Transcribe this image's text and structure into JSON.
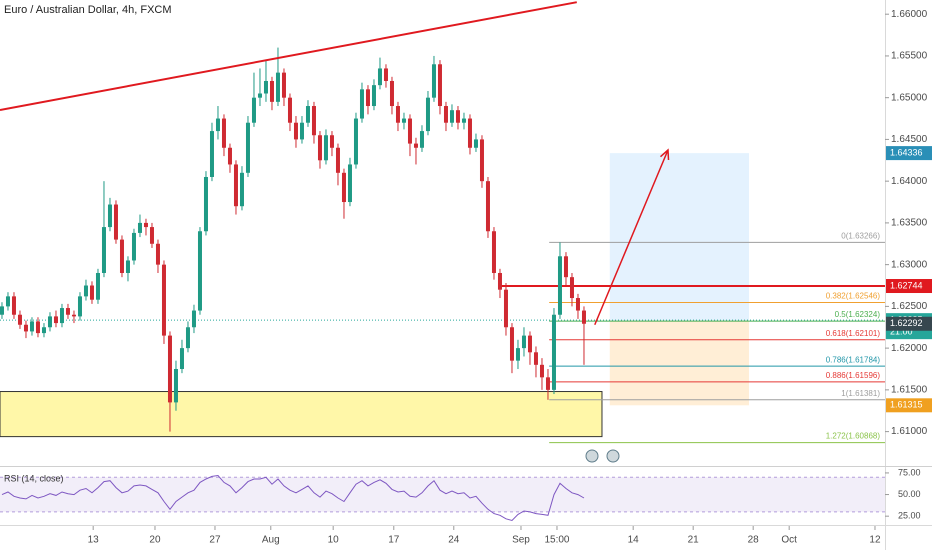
{
  "chart_data": {
    "type": "candlestick",
    "title": "Euro / Australian Dollar, 4h, FXCM",
    "up_color": "#1f9a85",
    "down_color": "#cf2a32",
    "open": [
      1.624,
      1.625,
      1.6262,
      1.624,
      1.6228,
      1.622,
      1.6232,
      1.6218,
      1.6225,
      1.6238,
      1.623,
      1.6248,
      1.624,
      1.6238,
      1.6262,
      1.6275,
      1.6258,
      1.629,
      1.6345,
      1.6372,
      1.633,
      1.629,
      1.6305,
      1.6338,
      1.635,
      1.6345,
      1.6325,
      1.63,
      1.6215,
      1.6135,
      1.6175,
      1.62,
      1.6225,
      1.6245,
      1.634,
      1.6405,
      1.646,
      1.6475,
      1.644,
      1.642,
      1.637,
      1.641,
      1.647,
      1.65,
      1.6505,
      1.652,
      1.6495,
      1.653,
      1.65,
      1.647,
      1.645,
      1.647,
      1.649,
      1.6455,
      1.6425,
      1.6455,
      1.644,
      1.641,
      1.6375,
      1.642,
      1.6475,
      1.651,
      1.649,
      1.6515,
      1.6535,
      1.652,
      1.649,
      1.647,
      1.6475,
      1.6445,
      1.644,
      1.646,
      1.65,
      1.654,
      1.649,
      1.647,
      1.6485,
      1.647,
      1.6475,
      1.644,
      1.645,
      1.64,
      1.634,
      1.629,
      1.627,
      1.6225,
      1.6185,
      1.62,
      1.6215,
      1.6195,
      1.618,
      1.6165,
      1.615,
      1.624,
      1.631,
      1.6285,
      1.626,
      1.6245
    ],
    "high": [
      1.6255,
      1.6267,
      1.6267,
      1.6245,
      1.6233,
      1.6237,
      1.6237,
      1.623,
      1.6243,
      1.6245,
      1.6253,
      1.6253,
      1.6245,
      1.6267,
      1.6282,
      1.628,
      1.6295,
      1.64,
      1.638,
      1.6377,
      1.6335,
      1.631,
      1.6343,
      1.636,
      1.6355,
      1.635,
      1.633,
      1.6305,
      1.622,
      1.6185,
      1.621,
      1.6232,
      1.6252,
      1.6345,
      1.6412,
      1.647,
      1.649,
      1.648,
      1.6445,
      1.6425,
      1.6418,
      1.6478,
      1.653,
      1.6535,
      1.6545,
      1.6525,
      1.656,
      1.6535,
      1.6505,
      1.6478,
      1.6478,
      1.6497,
      1.6495,
      1.646,
      1.6462,
      1.646,
      1.6445,
      1.6415,
      1.6428,
      1.6482,
      1.6518,
      1.6515,
      1.6522,
      1.6548,
      1.654,
      1.6525,
      1.6495,
      1.6482,
      1.648,
      1.6452,
      1.6467,
      1.6508,
      1.655,
      1.6545,
      1.6495,
      1.6492,
      1.649,
      1.6482,
      1.648,
      1.6457,
      1.6455,
      1.6405,
      1.6345,
      1.6295,
      1.6278,
      1.623,
      1.621,
      1.6225,
      1.622,
      1.6202,
      1.6188,
      1.6175,
      1.6248,
      1.63266,
      1.6315,
      1.629,
      1.6265,
      1.625
    ],
    "low": [
      1.6235,
      1.6245,
      1.6235,
      1.6223,
      1.6212,
      1.6215,
      1.6213,
      1.6213,
      1.622,
      1.6225,
      1.6225,
      1.6235,
      1.623,
      1.6233,
      1.6257,
      1.6253,
      1.6253,
      1.6285,
      1.634,
      1.6325,
      1.6285,
      1.628,
      1.63,
      1.6333,
      1.6335,
      1.632,
      1.629,
      1.6205,
      1.61,
      1.6125,
      1.617,
      1.6195,
      1.6218,
      1.624,
      1.6335,
      1.64,
      1.645,
      1.643,
      1.641,
      1.636,
      1.6365,
      1.6405,
      1.6465,
      1.649,
      1.6495,
      1.6485,
      1.649,
      1.649,
      1.646,
      1.644,
      1.6445,
      1.6465,
      1.6445,
      1.6415,
      1.642,
      1.643,
      1.6395,
      1.6355,
      1.637,
      1.6415,
      1.647,
      1.648,
      1.6485,
      1.651,
      1.6512,
      1.648,
      1.646,
      1.6462,
      1.643,
      1.642,
      1.6435,
      1.6455,
      1.6495,
      1.648,
      1.646,
      1.6465,
      1.6462,
      1.6462,
      1.6432,
      1.6435,
      1.6392,
      1.6332,
      1.6282,
      1.626,
      1.6215,
      1.617,
      1.6175,
      1.619,
      1.618,
      1.6165,
      1.615,
      1.61381,
      1.6145,
      1.6235,
      1.6275,
      1.625,
      1.6235,
      1.618
    ],
    "close": [
      1.625,
      1.6262,
      1.624,
      1.6228,
      1.622,
      1.6232,
      1.6218,
      1.6225,
      1.6238,
      1.623,
      1.6248,
      1.624,
      1.6238,
      1.6262,
      1.6275,
      1.6258,
      1.629,
      1.6345,
      1.6372,
      1.633,
      1.629,
      1.6305,
      1.6338,
      1.635,
      1.6345,
      1.6325,
      1.63,
      1.6215,
      1.6135,
      1.6175,
      1.62,
      1.6225,
      1.6245,
      1.634,
      1.6405,
      1.646,
      1.6475,
      1.644,
      1.642,
      1.637,
      1.641,
      1.647,
      1.65,
      1.6505,
      1.652,
      1.6495,
      1.653,
      1.65,
      1.647,
      1.645,
      1.647,
      1.649,
      1.6455,
      1.6425,
      1.6455,
      1.644,
      1.641,
      1.6375,
      1.642,
      1.6475,
      1.651,
      1.649,
      1.6515,
      1.6535,
      1.652,
      1.649,
      1.647,
      1.6475,
      1.6445,
      1.644,
      1.646,
      1.65,
      1.654,
      1.649,
      1.647,
      1.6485,
      1.647,
      1.6475,
      1.644,
      1.645,
      1.64,
      1.634,
      1.629,
      1.627,
      1.6225,
      1.6185,
      1.62,
      1.6215,
      1.6195,
      1.618,
      1.6165,
      1.615,
      1.624,
      1.631,
      1.6285,
      1.626,
      1.6245,
      1.62292
    ],
    "xlim": [
      -0.33,
      147.17
    ],
    "xticks": [
      {
        "value": 15.2,
        "label": "13"
      },
      {
        "value": 25.5,
        "label": "20"
      },
      {
        "value": 35.5,
        "label": "27"
      },
      {
        "value": 44.8,
        "label": "Aug"
      },
      {
        "value": 55.2,
        "label": "10"
      },
      {
        "value": 65.3,
        "label": "17"
      },
      {
        "value": 75.3,
        "label": "24"
      },
      {
        "value": 86.5,
        "label": "Sep"
      },
      {
        "value": 92.5,
        "label": "15:00"
      },
      {
        "value": 105.2,
        "label": "14"
      },
      {
        "value": 115.2,
        "label": "21"
      },
      {
        "value": 125.2,
        "label": "28"
      },
      {
        "value": 131.2,
        "label": "Oct"
      },
      {
        "value": 145.5,
        "label": "12"
      }
    ],
    "ylim": [
      1.606,
      1.6617
    ],
    "yticks": [
      {
        "value": 1.61,
        "label": "1.61000"
      },
      {
        "value": 1.615,
        "label": "1.61500"
      },
      {
        "value": 1.62,
        "label": "1.62000"
      },
      {
        "value": 1.625,
        "label": "1.62500"
      },
      {
        "value": 1.63,
        "label": "1.63000"
      },
      {
        "value": 1.635,
        "label": "1.63500"
      },
      {
        "value": 1.64,
        "label": "1.64000"
      },
      {
        "value": 1.645,
        "label": "1.64500"
      },
      {
        "value": 1.65,
        "label": "1.65000"
      },
      {
        "value": 1.655,
        "label": "1.65500"
      },
      {
        "value": 1.66,
        "label": "1.66000"
      }
    ],
    "trend_line": {
      "x": [
        -0.33,
        95.8
      ],
      "y": [
        1.64852,
        1.66144
      ],
      "color": "#e0191f"
    },
    "support_zone": {
      "x": [
        -0.33,
        100
      ],
      "y": [
        1.6094,
        1.6148
      ],
      "color": "#fff7a8"
    },
    "resistance_line": {
      "x": 83,
      "value": 1.62744,
      "color": "#e0191f"
    },
    "bid_line": {
      "value": 1.62335,
      "color": "#26a69a"
    },
    "countdown": "21:00",
    "fibonacci": {
      "x": 91.2,
      "levels": [
        {
          "label": "0(1.63266)",
          "value": 1.63266,
          "color": "#9e9e9e"
        },
        {
          "label": "0.382(1.62546)",
          "value": 1.62546,
          "color": "#f0a030"
        },
        {
          "label": "0.5(1.62324)",
          "value": 1.62324,
          "color": "#4caf50"
        },
        {
          "label": "0.618(1.62101)",
          "value": 1.62101,
          "color": "#e53935"
        },
        {
          "label": "0.786(1.61784)",
          "value": 1.61784,
          "color": "#2196a8"
        },
        {
          "label": "0.886(1.61596)",
          "value": 1.61596,
          "color": "#e53935"
        },
        {
          "label": "1(1.61381)",
          "value": 1.61381,
          "color": "#9e9e9e"
        },
        {
          "label": "1.272(1.60868)",
          "value": 1.60868,
          "color": "#8bc34a"
        }
      ]
    },
    "position": {
      "x": [
        101.3,
        124.5
      ],
      "target": 1.64336,
      "entry": 1.6233,
      "stop": 1.61315
    },
    "arrow": {
      "x": [
        98.8,
        111
      ],
      "y": [
        1.6228,
        1.64373
      ],
      "color": "#e0191f"
    },
    "rsi": {
      "title": "RSI (14, close)",
      "color": "#7e57c2",
      "values": [
        50,
        53,
        48,
        46,
        45,
        49,
        46,
        48,
        51,
        49,
        53,
        51,
        50,
        55,
        57,
        52,
        58,
        65,
        66,
        58,
        52,
        54,
        60,
        61,
        60,
        56,
        52,
        42,
        33,
        42,
        47,
        52,
        55,
        64,
        68,
        71,
        72,
        64,
        60,
        52,
        58,
        65,
        68,
        68,
        70,
        62,
        68,
        60,
        55,
        52,
        56,
        60,
        52,
        47,
        54,
        51,
        46,
        42,
        52,
        62,
        66,
        60,
        64,
        67,
        63,
        56,
        53,
        54,
        48,
        47,
        52,
        60,
        66,
        55,
        51,
        54,
        51,
        52,
        46,
        48,
        40,
        33,
        28,
        26,
        22,
        20,
        27,
        31,
        30,
        28,
        27,
        26,
        50,
        63,
        57,
        52,
        50,
        46
      ],
      "ylim": [
        14.8,
        80.7
      ],
      "yticks": [
        {
          "value": 25,
          "label": "25.00"
        },
        {
          "value": 50,
          "label": "50.00"
        },
        {
          "value": 75,
          "label": "75.00"
        }
      ],
      "band": [
        30,
        70
      ]
    }
  }
}
